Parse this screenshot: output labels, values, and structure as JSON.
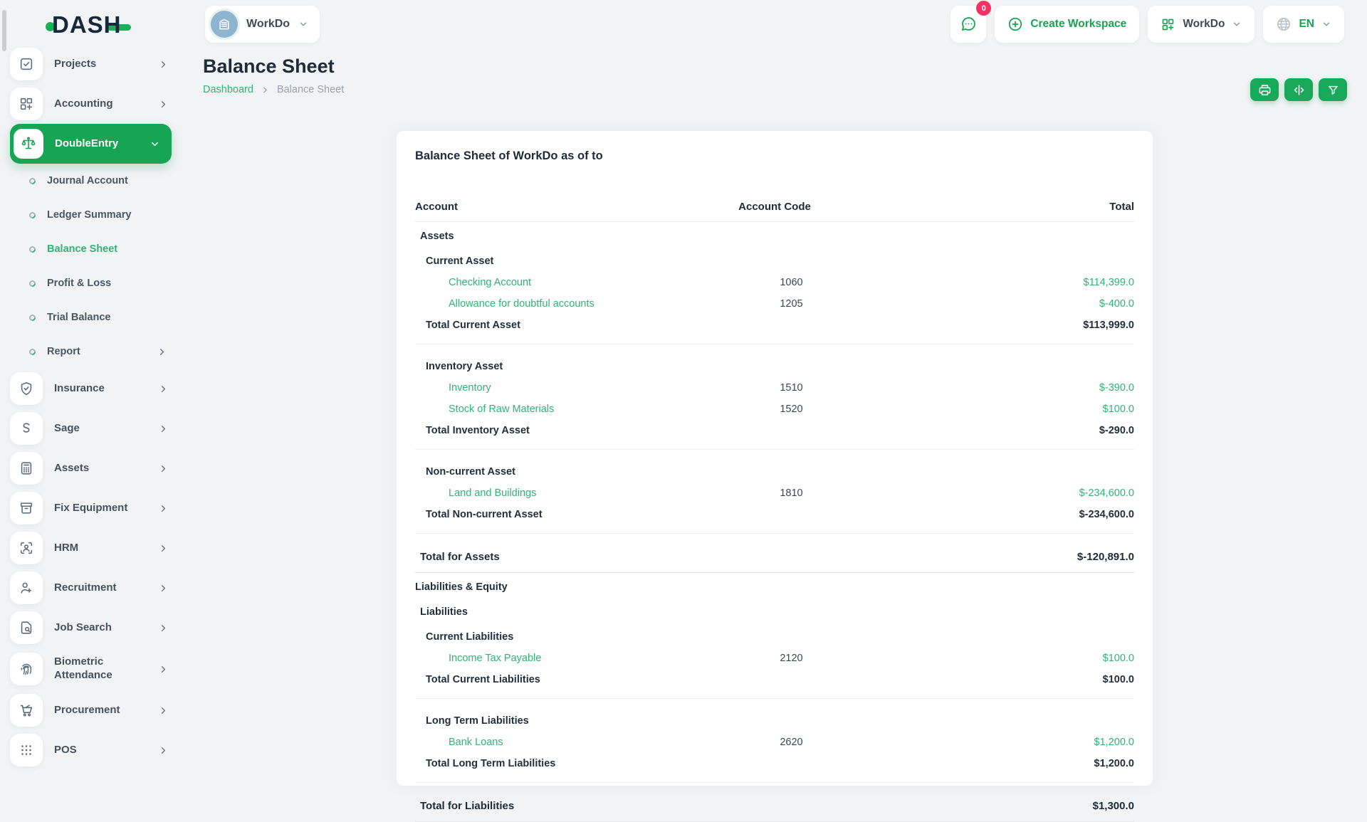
{
  "brand": {
    "logo_text": "DASH"
  },
  "header": {
    "workspace_selector": {
      "label": "WorkDo"
    },
    "chat_badge": "0",
    "create_workspace_label": "Create Workspace",
    "workspace_dropdown_label": "WorkDo",
    "language": "EN"
  },
  "sidebar": {
    "items": [
      {
        "label": "Projects",
        "icon": "checkbox-icon",
        "chevron": "right"
      },
      {
        "label": "Accounting",
        "icon": "grid-plus-icon",
        "chevron": "right"
      },
      {
        "label": "DoubleEntry",
        "icon": "balance-scale-icon",
        "chevron": "down",
        "active": true,
        "submenu": [
          {
            "label": "Journal Account"
          },
          {
            "label": "Ledger Summary"
          },
          {
            "label": "Balance Sheet",
            "active": true
          },
          {
            "label": "Profit & Loss"
          },
          {
            "label": "Trial Balance"
          },
          {
            "label": "Report",
            "chevron": "right"
          }
        ]
      },
      {
        "label": "Insurance",
        "icon": "shield-check-icon",
        "chevron": "right"
      },
      {
        "label": "Sage",
        "icon": "letter-s-icon",
        "chevron": "right"
      },
      {
        "label": "Assets",
        "icon": "calculator-icon",
        "chevron": "right"
      },
      {
        "label": "Fix Equipment",
        "icon": "archive-box-icon",
        "chevron": "right"
      },
      {
        "label": "HRM",
        "icon": "person-frame-icon",
        "chevron": "right"
      },
      {
        "label": "Recruitment",
        "icon": "person-plus-icon",
        "chevron": "right"
      },
      {
        "label": "Job Search",
        "icon": "document-search-icon",
        "chevron": "right"
      },
      {
        "label": "Biometric Attendance",
        "icon": "fingerprint-icon",
        "chevron": "right",
        "tall": true
      },
      {
        "label": "Procurement",
        "icon": "cart-icon",
        "chevron": "right"
      },
      {
        "label": "POS",
        "icon": "dots-grid-icon",
        "chevron": "right"
      }
    ]
  },
  "page": {
    "title": "Balance Sheet",
    "breadcrumb": [
      "Dashboard",
      "Balance Sheet"
    ],
    "actions": [
      {
        "name": "print",
        "icon": "printer-icon"
      },
      {
        "name": "toggle-view",
        "icon": "code-compare-icon"
      },
      {
        "name": "filter",
        "icon": "filter-icon"
      }
    ]
  },
  "report": {
    "title": "Balance Sheet of WorkDo as of to",
    "columns": [
      "Account",
      "Account Code",
      "Total"
    ],
    "rows": [
      {
        "type": "group",
        "level": 1,
        "label": "Assets"
      },
      {
        "type": "group",
        "level": 2,
        "label": "Current Asset"
      },
      {
        "type": "item",
        "level": 3,
        "label": "Checking Account",
        "code": "1060",
        "total": "$114,399.0"
      },
      {
        "type": "item",
        "level": 3,
        "label": "Allowance for doubtful accounts",
        "code": "1205",
        "total": "$-400.0"
      },
      {
        "type": "subtotal",
        "level": 2,
        "label": "Total Current Asset",
        "total": "$113,999.0",
        "divider_after": true
      },
      {
        "type": "group",
        "level": 2,
        "label": "Inventory Asset"
      },
      {
        "type": "item",
        "level": 3,
        "label": "Inventory",
        "code": "1510",
        "total": "$-390.0"
      },
      {
        "type": "item",
        "level": 3,
        "label": "Stock of Raw Materials",
        "code": "1520",
        "total": "$100.0"
      },
      {
        "type": "subtotal",
        "level": 2,
        "label": "Total Inventory Asset",
        "total": "$-290.0",
        "divider_after": true
      },
      {
        "type": "group",
        "level": 2,
        "label": "Non-current Asset"
      },
      {
        "type": "item",
        "level": 3,
        "label": "Land and Buildings",
        "code": "1810",
        "total": "$-234,600.0"
      },
      {
        "type": "subtotal",
        "level": 2,
        "label": "Total Non-current Asset",
        "total": "$-234,600.0",
        "divider_after": true
      },
      {
        "type": "total",
        "level": 1,
        "label": "Total for Assets",
        "total": "$-120,891.0"
      },
      {
        "type": "group",
        "level": 0,
        "label": "Liabilities & Equity"
      },
      {
        "type": "group",
        "level": 1,
        "label": "Liabilities"
      },
      {
        "type": "group",
        "level": 2,
        "label": "Current Liabilities"
      },
      {
        "type": "item",
        "level": 3,
        "label": "Income Tax Payable",
        "code": "2120",
        "total": "$100.0"
      },
      {
        "type": "subtotal",
        "level": 2,
        "label": "Total Current Liabilities",
        "total": "$100.0",
        "divider_after": true
      },
      {
        "type": "group",
        "level": 2,
        "label": "Long Term Liabilities"
      },
      {
        "type": "item",
        "level": 3,
        "label": "Bank Loans",
        "code": "2620",
        "total": "$1,200.0"
      },
      {
        "type": "subtotal",
        "level": 2,
        "label": "Total Long Term Liabilities",
        "total": "$1,200.0",
        "divider_after": true
      },
      {
        "type": "total",
        "level": 1,
        "label": "Total for Liabilities",
        "total": "$1,300.0"
      }
    ]
  },
  "colors": {
    "theme_green": "#15a553",
    "link_green": "#2eb573",
    "badge_pink": "#f73164",
    "navy_text": "#1d2b3a"
  }
}
